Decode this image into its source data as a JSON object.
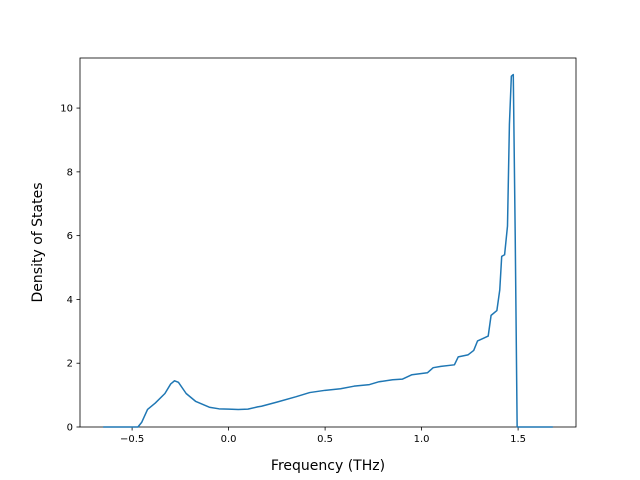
{
  "chart_data": {
    "type": "line",
    "xlabel": "Frequency (THz)",
    "ylabel": "Density of States",
    "x": [
      -0.65,
      -0.55,
      -0.47,
      -0.45,
      -0.42,
      -0.38,
      -0.33,
      -0.3,
      -0.28,
      -0.26,
      -0.22,
      -0.17,
      -0.1,
      -0.05,
      0.0,
      0.05,
      0.1,
      0.15,
      0.17,
      0.25,
      0.35,
      0.42,
      0.5,
      0.58,
      0.65,
      0.73,
      0.78,
      0.85,
      0.9,
      0.95,
      1.03,
      1.06,
      1.1,
      1.17,
      1.19,
      1.24,
      1.27,
      1.29,
      1.32,
      1.345,
      1.36,
      1.39,
      1.405,
      1.415,
      1.43,
      1.445,
      1.455,
      1.465,
      1.475,
      1.485,
      1.495,
      1.55,
      1.68
    ],
    "values": [
      0,
      0,
      0,
      0.15,
      0.55,
      0.75,
      1.05,
      1.35,
      1.45,
      1.4,
      1.05,
      0.8,
      0.62,
      0.57,
      0.56,
      0.55,
      0.56,
      0.63,
      0.65,
      0.78,
      0.95,
      1.08,
      1.15,
      1.2,
      1.28,
      1.33,
      1.42,
      1.48,
      1.5,
      1.64,
      1.7,
      1.86,
      1.9,
      1.95,
      2.2,
      2.26,
      2.4,
      2.7,
      2.78,
      2.85,
      3.5,
      3.65,
      4.3,
      5.35,
      5.4,
      6.3,
      9.5,
      11.0,
      11.05,
      6.0,
      0,
      0,
      0
    ],
    "color": "#1f77b4",
    "xlim": [
      -0.77,
      1.8
    ],
    "ylim": [
      0,
      11.57
    ],
    "xticks": [
      {
        "value": -0.5,
        "label": "−0.5"
      },
      {
        "value": 0,
        "label": "0.0"
      },
      0.5,
      {
        "value": 1,
        "label": "1.0"
      },
      1.5
    ],
    "yticks": [
      0,
      2,
      4,
      6,
      8,
      10
    ]
  }
}
